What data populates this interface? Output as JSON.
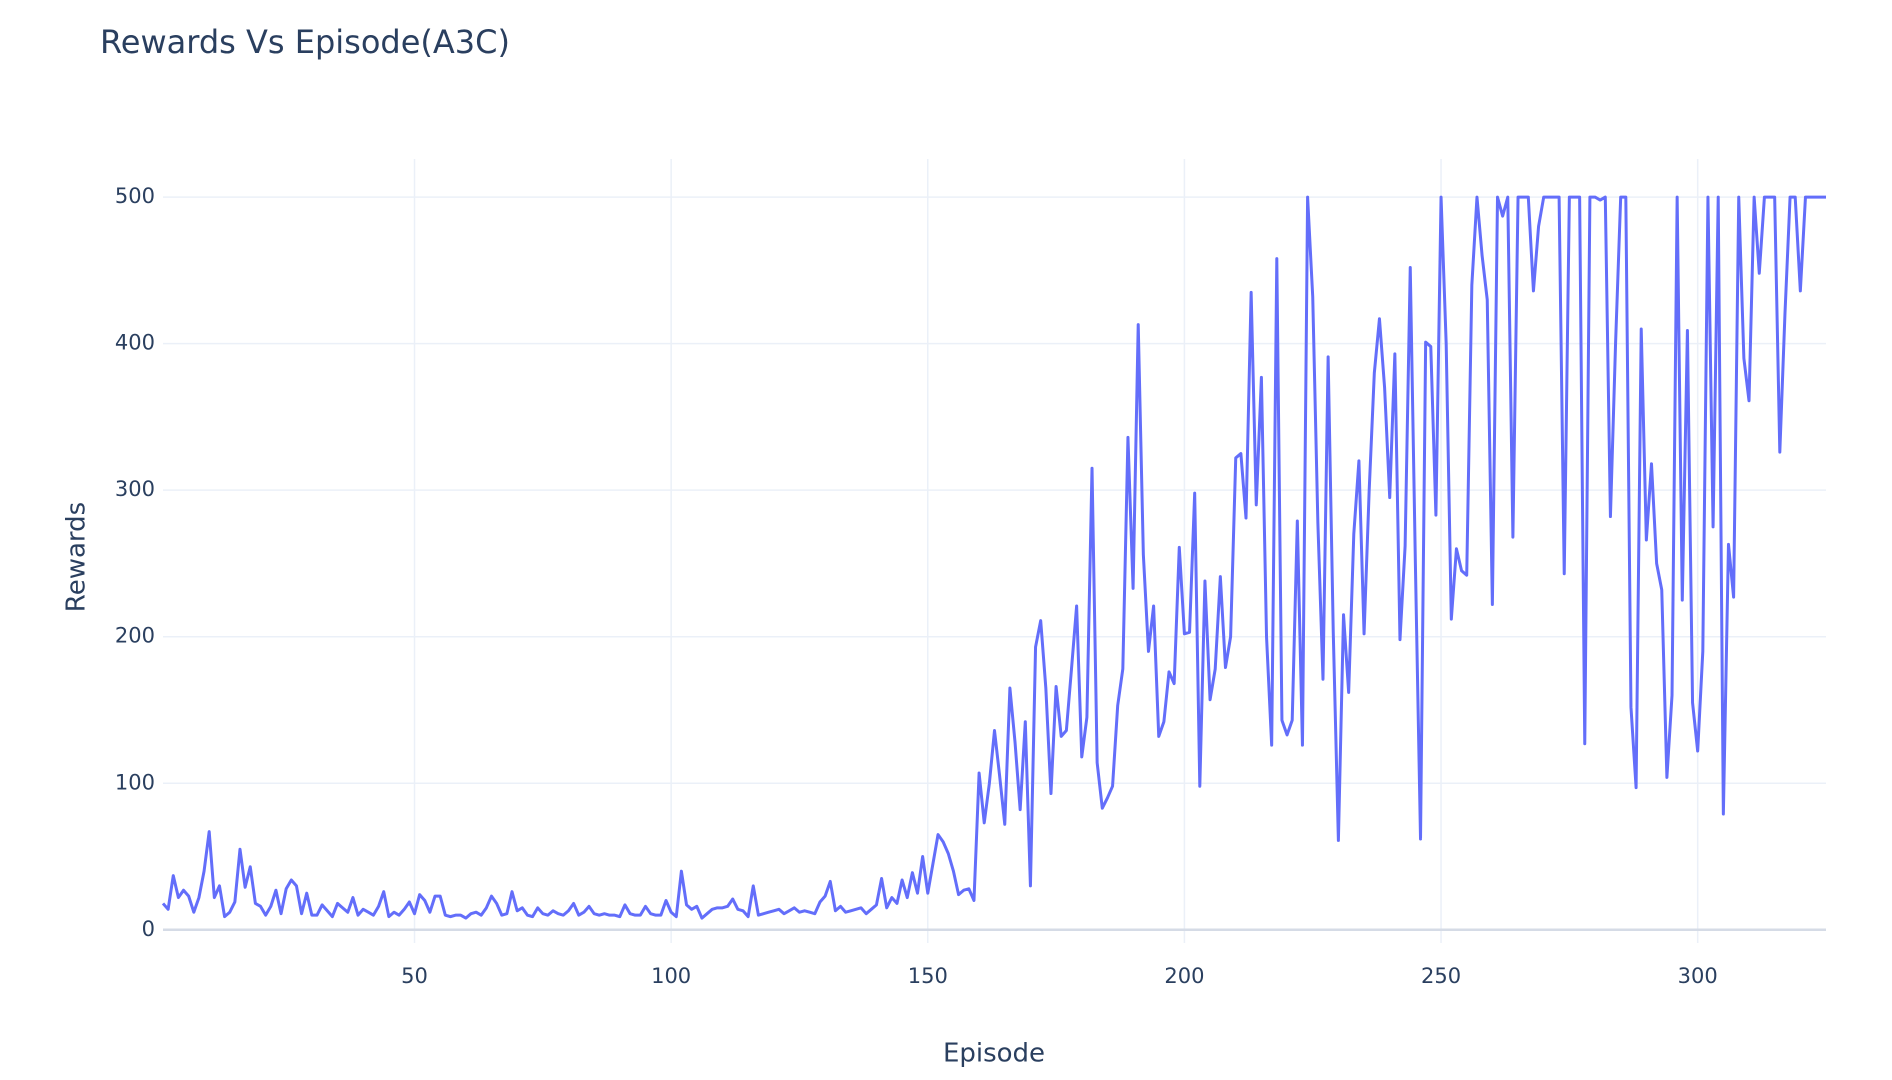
{
  "chart_data": {
    "type": "line",
    "title": "Rewards Vs Episode(A3C)",
    "x_label": "Episode",
    "y_label": "Rewards",
    "xlim": [
      1,
      325
    ],
    "ylim": [
      -9,
      526
    ],
    "xticks": [
      50,
      100,
      150,
      200,
      250,
      300
    ],
    "yticks": [
      0,
      100,
      200,
      300,
      400,
      500
    ],
    "grid": true,
    "x": [
      1,
      2,
      3,
      4,
      5,
      6,
      7,
      8,
      9,
      10,
      11,
      12,
      13,
      14,
      15,
      16,
      17,
      18,
      19,
      20,
      21,
      22,
      23,
      24,
      25,
      26,
      27,
      28,
      29,
      30,
      31,
      32,
      33,
      34,
      35,
      36,
      37,
      38,
      39,
      40,
      41,
      42,
      43,
      44,
      45,
      46,
      47,
      48,
      49,
      50,
      51,
      52,
      53,
      54,
      55,
      56,
      57,
      58,
      59,
      60,
      61,
      62,
      63,
      64,
      65,
      66,
      67,
      68,
      69,
      70,
      71,
      72,
      73,
      74,
      75,
      76,
      77,
      78,
      79,
      80,
      81,
      82,
      83,
      84,
      85,
      86,
      87,
      88,
      89,
      90,
      91,
      92,
      93,
      94,
      95,
      96,
      97,
      98,
      99,
      100,
      101,
      102,
      103,
      104,
      105,
      106,
      107,
      108,
      109,
      110,
      111,
      112,
      113,
      114,
      115,
      116,
      117,
      118,
      119,
      120,
      121,
      122,
      123,
      124,
      125,
      126,
      127,
      128,
      129,
      130,
      131,
      132,
      133,
      134,
      135,
      136,
      137,
      138,
      139,
      140,
      141,
      142,
      143,
      144,
      145,
      146,
      147,
      148,
      149,
      150,
      151,
      152,
      153,
      154,
      155,
      156,
      157,
      158,
      159,
      160,
      161,
      162,
      163,
      164,
      165,
      166,
      167,
      168,
      169,
      170,
      171,
      172,
      173,
      174,
      175,
      176,
      177,
      178,
      179,
      180,
      181,
      182,
      183,
      184,
      185,
      186,
      187,
      188,
      189,
      190,
      191,
      192,
      193,
      194,
      195,
      196,
      197,
      198,
      199,
      200,
      201,
      202,
      203,
      204,
      205,
      206,
      207,
      208,
      209,
      210,
      211,
      212,
      213,
      214,
      215,
      216,
      217,
      218,
      219,
      220,
      221,
      222,
      223,
      224,
      225,
      226,
      227,
      228,
      229,
      230,
      231,
      232,
      233,
      234,
      235,
      236,
      237,
      238,
      239,
      240,
      241,
      242,
      243,
      244,
      245,
      246,
      247,
      248,
      249,
      250,
      251,
      252,
      253,
      254,
      255,
      256,
      257,
      258,
      259,
      260,
      261,
      262,
      263,
      264,
      265,
      266,
      267,
      268,
      269,
      270,
      271,
      272,
      273,
      274,
      275,
      276,
      277,
      278,
      279,
      280,
      281,
      282,
      283,
      284,
      285,
      286,
      287,
      288,
      289,
      290,
      291,
      292,
      293,
      294,
      295,
      296,
      297,
      298,
      299,
      300,
      301,
      302,
      303,
      304,
      305,
      306,
      307,
      308,
      309,
      310,
      311,
      312,
      313,
      314,
      315,
      316,
      317,
      318,
      319,
      320,
      321,
      322,
      323,
      324,
      325
    ],
    "series": [
      {
        "name": "Rewards",
        "color": "#636efa",
        "values": [
          18,
          14,
          37,
          22,
          27,
          23,
          12,
          22,
          40,
          67,
          22,
          30,
          9,
          12,
          19,
          55,
          29,
          43,
          18,
          16,
          10,
          16,
          27,
          11,
          28,
          34,
          30,
          11,
          25,
          10,
          10,
          17,
          13,
          9,
          18,
          15,
          12,
          22,
          10,
          14,
          12,
          10,
          16,
          26,
          9,
          12,
          10,
          14,
          19,
          11,
          24,
          20,
          12,
          23,
          23,
          10,
          9,
          10,
          10,
          8,
          11,
          12,
          10,
          15,
          23,
          18,
          10,
          11,
          26,
          13,
          15,
          10,
          9,
          15,
          11,
          10,
          13,
          11,
          10,
          13,
          18,
          10,
          12,
          16,
          11,
          10,
          11,
          10,
          10,
          9,
          17,
          11,
          10,
          10,
          16,
          11,
          10,
          10,
          20,
          12,
          9,
          40,
          17,
          14,
          16,
          8,
          11,
          14,
          15,
          15,
          16,
          21,
          14,
          13,
          9,
          30,
          10,
          11,
          12,
          13,
          14,
          11,
          13,
          15,
          12,
          13,
          12,
          11,
          19,
          23,
          33,
          13,
          16,
          12,
          13,
          14,
          15,
          11,
          14,
          17,
          35,
          15,
          22,
          18,
          34,
          22,
          39,
          25,
          50,
          25,
          45,
          65,
          60,
          52,
          40,
          24,
          27,
          28,
          20,
          107,
          73,
          100,
          136,
          105,
          72,
          165,
          128,
          82,
          142,
          30,
          193,
          211,
          165,
          93,
          166,
          132,
          136,
          178,
          221,
          118,
          145,
          315,
          114,
          83,
          90,
          98,
          153,
          178,
          336,
          233,
          413,
          256,
          190,
          221,
          132,
          142,
          176,
          168,
          261,
          202,
          203,
          298,
          98,
          238,
          157,
          178,
          241,
          179,
          200,
          322,
          325,
          281,
          435,
          290,
          377,
          200,
          126,
          458,
          143,
          133,
          143,
          279,
          126,
          500,
          432,
          278,
          171,
          391,
          203,
          61,
          215,
          162,
          270,
          320,
          202,
          300,
          380,
          417,
          370,
          295,
          393,
          198,
          262,
          452,
          250,
          62,
          401,
          398,
          283,
          500,
          400,
          212,
          260,
          245,
          242,
          440,
          500,
          460,
          430,
          222,
          500,
          487,
          500,
          268,
          500,
          500,
          500,
          436,
          480,
          500,
          500,
          500,
          500,
          243,
          500,
          500,
          500,
          127,
          500,
          500,
          498,
          500,
          282,
          400,
          500,
          500,
          152,
          97,
          410,
          266,
          318,
          250,
          232,
          104,
          160,
          500,
          225,
          409,
          155,
          122,
          190,
          500,
          275,
          500,
          79,
          263,
          227,
          500,
          390,
          361,
          500,
          448,
          500,
          500,
          500,
          326,
          420,
          500,
          500,
          436,
          500,
          500,
          500,
          500,
          500
        ]
      }
    ]
  }
}
